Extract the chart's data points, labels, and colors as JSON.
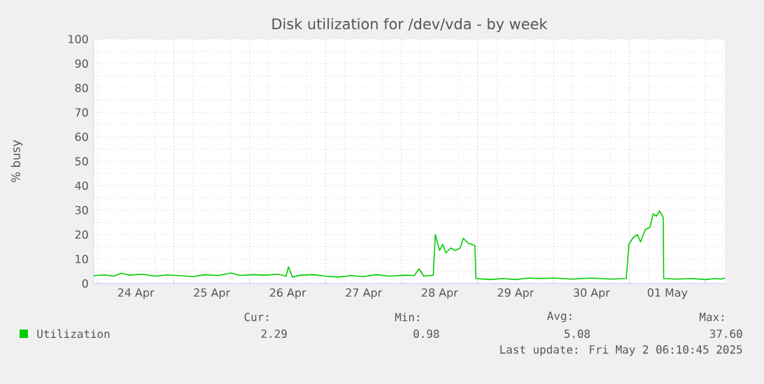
{
  "chart_data": {
    "type": "line",
    "title": "Disk utilization for /dev/vda - by week",
    "ylabel": "% busy",
    "x": [
      "2025-04-23T22:40",
      "2025-04-24T02:00",
      "2025-04-24T05:00",
      "2025-04-24T07:30",
      "2025-04-24T10:00",
      "2025-04-24T14:00",
      "2025-04-24T18:00",
      "2025-04-24T22:00",
      "2025-04-25T02:00",
      "2025-04-25T06:00",
      "2025-04-25T10:00",
      "2025-04-25T14:00",
      "2025-04-25T18:00",
      "2025-04-25T21:00",
      "2025-04-26T01:00",
      "2025-04-26T05:00",
      "2025-04-26T09:00",
      "2025-04-26T11:30",
      "2025-04-26T12:15",
      "2025-04-26T13:30",
      "2025-04-26T16:00",
      "2025-04-26T20:00",
      "2025-04-27T00:00",
      "2025-04-27T04:00",
      "2025-04-27T08:00",
      "2025-04-27T12:00",
      "2025-04-27T16:00",
      "2025-04-27T20:00",
      "2025-04-28T01:00",
      "2025-04-28T04:00",
      "2025-04-28T05:30",
      "2025-04-28T07:00",
      "2025-04-28T10:00",
      "2025-04-28T10:40",
      "2025-04-28T12:00",
      "2025-04-28T13:00",
      "2025-04-28T14:00",
      "2025-04-28T15:30",
      "2025-04-28T17:00",
      "2025-04-28T18:30",
      "2025-04-28T19:30",
      "2025-04-28T21:00",
      "2025-04-28T23:10",
      "2025-04-28T23:30",
      "2025-04-29T04:00",
      "2025-04-29T08:00",
      "2025-04-29T12:00",
      "2025-04-29T16:00",
      "2025-04-29T20:00",
      "2025-04-30T00:00",
      "2025-04-30T06:00",
      "2025-04-30T12:00",
      "2025-04-30T18:00",
      "2025-04-30T23:00",
      "2025-04-30T23:50",
      "2025-05-01T01:00",
      "2025-05-01T02:30",
      "2025-05-01T03:30",
      "2025-05-01T05:00",
      "2025-05-01T06:30",
      "2025-05-01T07:30",
      "2025-05-01T08:30",
      "2025-05-01T09:30",
      "2025-05-01T10:40",
      "2025-05-01T10:50",
      "2025-05-01T15:00",
      "2025-05-01T20:00",
      "2025-05-02T00:00",
      "2025-05-02T03:00",
      "2025-05-02T05:00",
      "2025-05-02T06:10"
    ],
    "series": [
      {
        "name": "Utilization",
        "color": "#00cc00",
        "values": [
          3.2,
          3.5,
          3.0,
          4.2,
          3.4,
          3.8,
          3.0,
          3.5,
          3.2,
          2.8,
          3.6,
          3.2,
          4.3,
          3.3,
          3.6,
          3.4,
          3.8,
          3.0,
          6.8,
          2.6,
          3.4,
          3.6,
          3.0,
          2.6,
          3.2,
          2.8,
          3.6,
          3.0,
          3.4,
          3.2,
          6.0,
          3.0,
          3.4,
          20.0,
          13.5,
          16.0,
          12.5,
          14.5,
          13.5,
          14.5,
          18.5,
          16.5,
          15.5,
          2.0,
          1.6,
          2.0,
          1.6,
          2.2,
          2.0,
          2.2,
          1.8,
          2.2,
          1.8,
          2.0,
          16.0,
          18.5,
          20.0,
          17.0,
          22.0,
          23.0,
          28.5,
          27.5,
          29.7,
          27.0,
          2.0,
          1.8,
          2.0,
          1.6,
          2.0,
          1.8,
          2.3
        ]
      }
    ],
    "xlim": [
      "2025-04-23T22:40",
      "2025-05-02T06:10"
    ],
    "xticks": [
      {
        "value": "2025-04-24T12:00",
        "label": "24 Apr"
      },
      {
        "value": "2025-04-25T12:00",
        "label": "25 Apr"
      },
      {
        "value": "2025-04-26T12:00",
        "label": "26 Apr"
      },
      {
        "value": "2025-04-27T12:00",
        "label": "27 Apr"
      },
      {
        "value": "2025-04-28T12:00",
        "label": "28 Apr"
      },
      {
        "value": "2025-04-29T12:00",
        "label": "29 Apr"
      },
      {
        "value": "2025-04-30T12:00",
        "label": "30 Apr"
      },
      {
        "value": "2025-05-01T12:00",
        "label": "01 May"
      }
    ],
    "ylim": [
      0,
      100
    ],
    "yticks": [
      0,
      10,
      20,
      30,
      40,
      50,
      60,
      70,
      80,
      90,
      100
    ],
    "grid": true,
    "legend": "bottom",
    "marker": "none",
    "line_style": "solid",
    "annotations": [
      "Cur:",
      "Min:",
      "Avg:",
      "Max:",
      "2.29",
      "0.98",
      "5.08",
      "37.60",
      "Last update: Fri May  2 06:10:45 2025"
    ]
  }
}
